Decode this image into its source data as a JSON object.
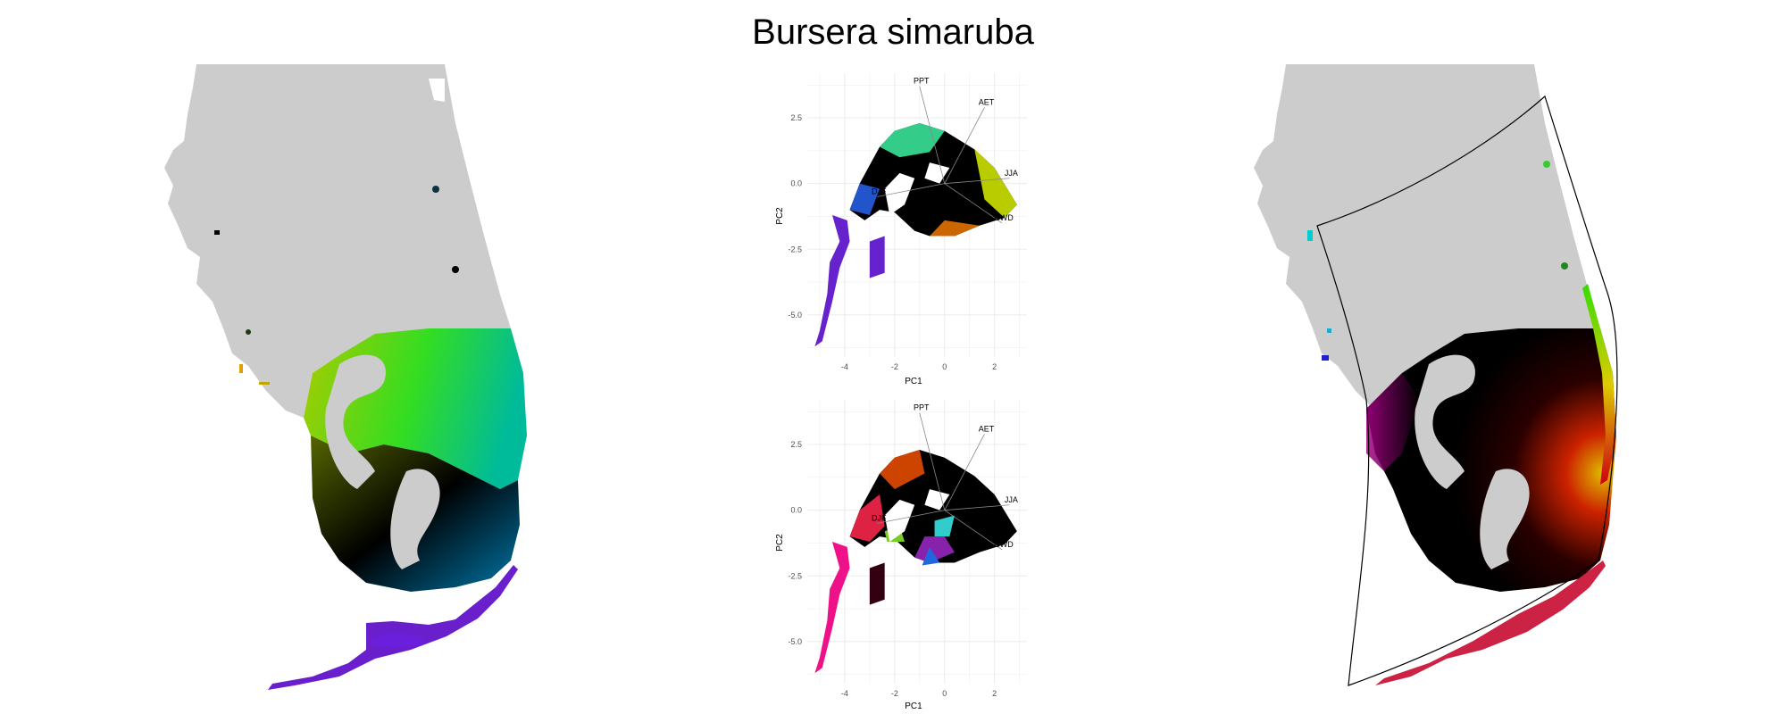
{
  "title": "Bursera simaruba",
  "colors": {
    "land": "#cccccc",
    "background": "#ffffff",
    "grid": "#ebebeb",
    "loading_arrow": "#888888",
    "outline": "#000000"
  },
  "chart_data": [
    {
      "type": "map",
      "name": "left-map",
      "title": "",
      "description_colors": [
        "#a6cc00",
        "#33dd33",
        "#00aaaa",
        "#2233cc",
        "#7a11dd",
        "#000000"
      ]
    },
    {
      "type": "scatter",
      "name": "pca-biplot-top",
      "xlabel": "PC1",
      "ylabel": "PC2",
      "xlim": [
        -5.5,
        3.3
      ],
      "ylim": [
        -6.6,
        4.2
      ],
      "xticks": [
        "-4",
        "-2",
        "0",
        "2"
      ],
      "xtick_values": [
        -4,
        -2,
        0,
        2
      ],
      "yticks": [
        "2.5",
        "0.0",
        "-2.5",
        "-5.0"
      ],
      "ytick_values": [
        2.5,
        0.0,
        -2.5,
        -5.0
      ],
      "grid": true,
      "loadings": [
        {
          "label": "PPT",
          "x": -1.0,
          "y": 3.7
        },
        {
          "label": "AET",
          "x": 1.6,
          "y": 2.9
        },
        {
          "label": "JJA",
          "x": 2.6,
          "y": 0.2
        },
        {
          "label": "CWD",
          "x": 2.3,
          "y": -1.5
        },
        {
          "label": "DJF",
          "x": -2.7,
          "y": -0.5
        }
      ],
      "point_colors": [
        "#33cc88",
        "#000000",
        "#b8cc00",
        "#cc6600",
        "#2255cc",
        "#6622cc",
        "#1166aa"
      ]
    },
    {
      "type": "scatter",
      "name": "pca-biplot-bottom",
      "xlabel": "PC1",
      "ylabel": "PC2",
      "xlim": [
        -5.5,
        3.3
      ],
      "ylim": [
        -6.6,
        4.2
      ],
      "xticks": [
        "-4",
        "-2",
        "0",
        "2"
      ],
      "xtick_values": [
        -4,
        -2,
        0,
        2
      ],
      "yticks": [
        "2.5",
        "0.0",
        "-2.5",
        "-5.0"
      ],
      "ytick_values": [
        2.5,
        0.0,
        -2.5,
        -5.0
      ],
      "grid": true,
      "loadings": [
        {
          "label": "PPT",
          "x": -1.0,
          "y": 3.7
        },
        {
          "label": "AET",
          "x": 1.6,
          "y": 2.9
        },
        {
          "label": "JJA",
          "x": 2.6,
          "y": 0.2
        },
        {
          "label": "CWD",
          "x": 2.3,
          "y": -1.5
        },
        {
          "label": "DJF",
          "x": -2.7,
          "y": -0.5
        }
      ],
      "point_colors": [
        "#dd2244",
        "#cc4400",
        "#77cc22",
        "#000000",
        "#330011",
        "#8822aa",
        "#2266dd",
        "#33cccc",
        "#ee1188"
      ]
    },
    {
      "type": "map",
      "name": "right-map",
      "title": "",
      "description_colors": [
        "#000000",
        "#cc0000",
        "#eecc00",
        "#33dd00",
        "#aa0077",
        "#dd2255",
        "#00cccc",
        "#2222cc"
      ]
    }
  ]
}
